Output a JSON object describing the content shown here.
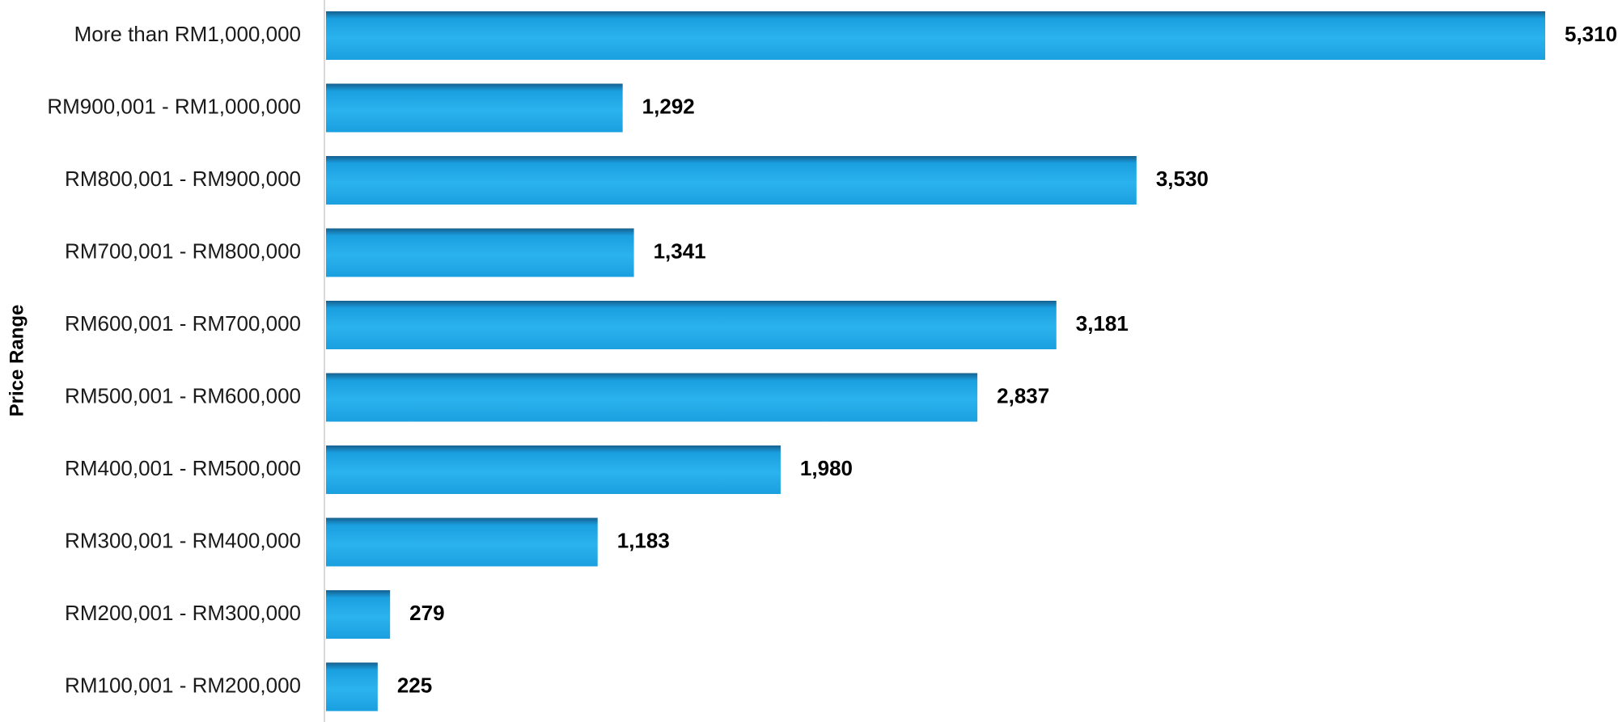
{
  "chart_data": {
    "type": "bar",
    "orientation": "horizontal",
    "title": "",
    "xlabel": "",
    "ylabel": "Price Range",
    "categories": [
      "More than RM1,000,000",
      "RM900,001 - RM1,000,000",
      "RM800,001 - RM900,000",
      "RM700,001 - RM800,000",
      "RM600,001 - RM700,000",
      "RM500,001 - RM600,000",
      "RM400,001 - RM500,000",
      "RM300,001 - RM400,000",
      "RM200,001 - RM300,000",
      "RM100,001 - RM200,000"
    ],
    "values": [
      5310,
      1292,
      3530,
      1341,
      3181,
      2837,
      1980,
      1183,
      279,
      225
    ],
    "value_labels": [
      "5,310",
      "1,292",
      "3,530",
      "1,341",
      "3,181",
      "2,837",
      "1,980",
      "1,183",
      "279",
      "225"
    ],
    "xlim": [
      0,
      5310
    ],
    "grid": false,
    "legend": "none",
    "bar_color": "#1a9fdf",
    "bar_color_light": "#2bb3ee",
    "bar_color_dark": "#15608f"
  }
}
